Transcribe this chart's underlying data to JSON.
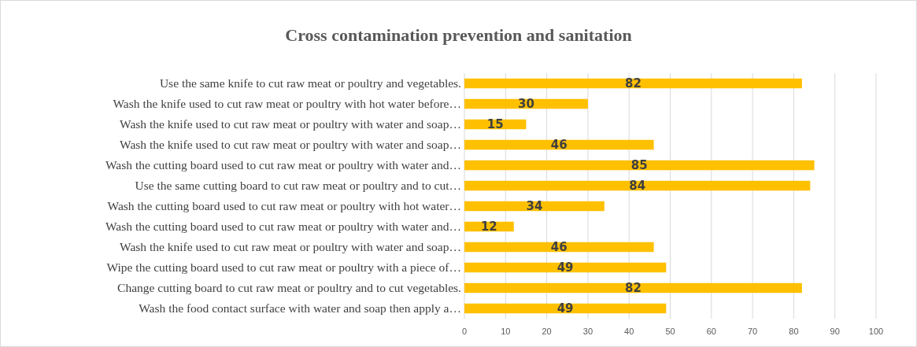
{
  "chart_data": {
    "type": "bar",
    "orientation": "horizontal",
    "title": "Cross contamination prevention and sanitation",
    "categories": [
      "Use the same knife to cut raw meat or poultry and vegetables.",
      "Wash the knife used to cut raw meat or poultry with hot water before…",
      "Wash the knife used to cut raw meat or poultry with water and soap…",
      "Wash the knife used to cut raw meat or poultry with water and soap…",
      "Wash the cutting board used to cut raw meat or poultry with water and…",
      "Use the same cutting board to cut raw meat or poultry and to cut…",
      "Wash the cutting board used to cut raw meat or poultry with hot water…",
      "Wash the cutting board used to cut raw meat or poultry with water and…",
      "Wash the knife used to cut raw meat or poultry with water and soap…",
      "Wipe the cutting board used to cut raw meat or poultry with a piece of…",
      "Change cutting board to cut raw meat or poultry and to cut vegetables.",
      "Wash the food contact surface with water and soap then apply a…"
    ],
    "values": [
      82,
      30,
      15,
      46,
      85,
      84,
      34,
      12,
      46,
      49,
      82,
      49
    ],
    "color": "#ffc000",
    "data_labels": true,
    "grid": "x",
    "xlim": [
      0,
      100
    ],
    "xticks": [
      0,
      10,
      20,
      30,
      40,
      50,
      60,
      70,
      80,
      90,
      100
    ]
  }
}
